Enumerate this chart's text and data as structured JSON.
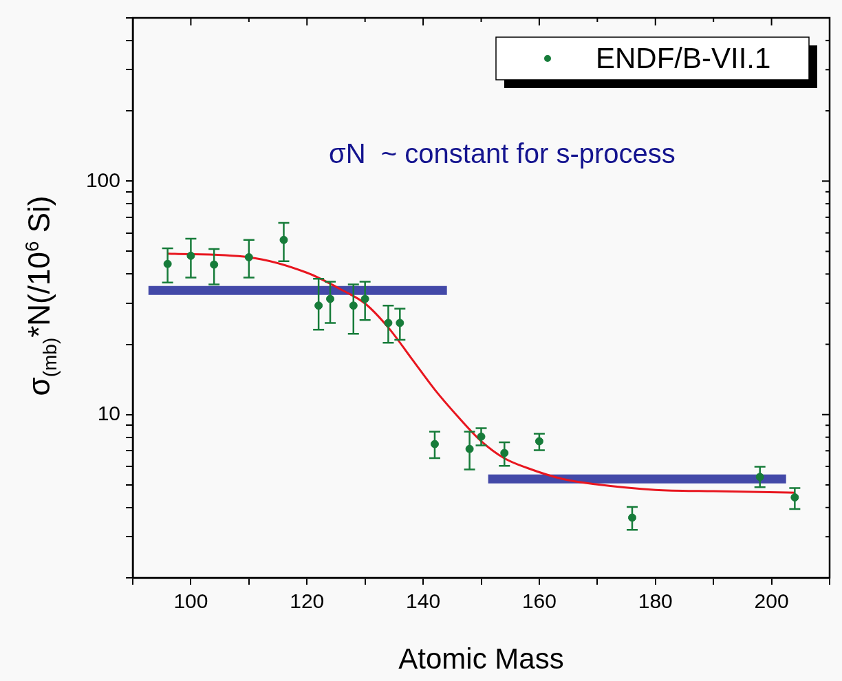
{
  "chart_data": {
    "type": "scatter",
    "xlabel": "Atomic Mass",
    "ylabel": "σ$_{(mb)}$*N(/10$^{6}$ Si)",
    "log": "y",
    "xlim": [
      90,
      210
    ],
    "ylim": [
      2,
      500
    ],
    "xticks": [
      {
        "value": 90,
        "label": null
      },
      100,
      {
        "value": 110,
        "label": null
      },
      120,
      {
        "value": 130,
        "label": null
      },
      140,
      {
        "value": 150,
        "label": null
      },
      160,
      {
        "value": 170,
        "label": null
      },
      180,
      {
        "value": 190,
        "label": null
      },
      200,
      {
        "value": 210,
        "label": null
      }
    ],
    "yticks": [
      {
        "value": 2,
        "label": null
      },
      {
        "value": 3,
        "label": null
      },
      {
        "value": 4,
        "label": null
      },
      {
        "value": 5,
        "label": null
      },
      {
        "value": 6,
        "label": null
      },
      {
        "value": 7,
        "label": null
      },
      {
        "value": 8,
        "label": null
      },
      {
        "value": 9,
        "label": null
      },
      10,
      {
        "value": 20,
        "label": null
      },
      {
        "value": 30,
        "label": null
      },
      {
        "value": 40,
        "label": null
      },
      {
        "value": 50,
        "label": null
      },
      {
        "value": 60,
        "label": null
      },
      {
        "value": 70,
        "label": null
      },
      {
        "value": 80,
        "label": null
      },
      {
        "value": 90,
        "label": null
      },
      100,
      {
        "value": 200,
        "label": null
      },
      {
        "value": 300,
        "label": null
      },
      {
        "value": 400,
        "label": null
      },
      {
        "value": 500,
        "label": null
      }
    ],
    "legend": "top right",
    "annotations": [
      "σN  ~ constant for s-process"
    ],
    "series": [
      {
        "name": "ENDF/B-VII.1",
        "color": "#177c3a",
        "marker": "circle",
        "x": [
          96,
          100,
          104,
          110,
          116,
          122,
          124,
          128,
          130,
          134,
          136,
          142,
          148,
          150,
          154,
          160,
          176,
          198,
          204
        ],
        "values": [
          44.2,
          47.9,
          43.9,
          47.2,
          56,
          29.3,
          31.3,
          29.3,
          31.3,
          24.7,
          24.7,
          7.48,
          7.13,
          8.05,
          6.85,
          7.69,
          3.62,
          5.41,
          4.42
        ],
        "errors": [
          [
            36.8,
            51.5
          ],
          [
            38.6,
            56.7
          ],
          [
            36.1,
            51.2
          ],
          [
            38.6,
            56
          ],
          [
            45.4,
            66.2
          ],
          [
            23.1,
            38.2
          ],
          [
            24.7,
            37.1
          ],
          [
            22.2,
            36.1
          ],
          [
            25.4,
            37.1
          ],
          [
            20.3,
            29.3
          ],
          [
            20.9,
            28.4
          ],
          [
            6.51,
            8.45
          ],
          [
            5.82,
            8.45
          ],
          [
            7.38,
            8.74
          ],
          [
            6.03,
            7.61
          ],
          [
            7.04,
            8.28
          ],
          [
            3.21,
            4.02
          ],
          [
            4.89,
            5.98
          ],
          [
            3.94,
            4.85
          ]
        ]
      },
      {
        "type": "line",
        "color": "#e8161f",
        "marker": "none",
        "x": [
          96,
          110,
          120,
          126,
          130,
          134,
          138,
          142,
          146,
          150,
          154,
          158,
          164,
          170,
          180,
          190,
          204
        ],
        "values": [
          48.9,
          47.2,
          40.5,
          34.2,
          29.9,
          23.6,
          17.4,
          12.8,
          9.8,
          7.7,
          6.5,
          5.9,
          5.3,
          5.02,
          4.76,
          4.7,
          4.63
        ]
      },
      {
        "type": "line",
        "color": "#4349a8",
        "marker": "none",
        "x": [
          92.7,
          144.1
        ],
        "values": [
          34,
          34
        ]
      },
      {
        "type": "line",
        "color": "#4349a8",
        "marker": "none",
        "x": [
          151.2,
          202.5
        ],
        "values": [
          5.3,
          5.3
        ]
      }
    ]
  }
}
